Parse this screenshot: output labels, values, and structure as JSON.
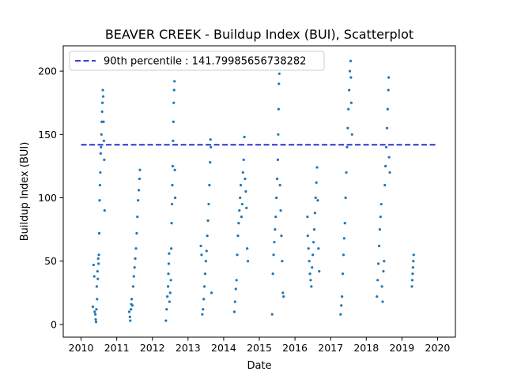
{
  "chart_data": {
    "type": "scatter",
    "title": "BEAVER CREEK - Buildup Index (BUI), Scatterplot",
    "xlabel": "Date",
    "ylabel": "Buildup Index (BUI)",
    "xlim": [
      2009.5,
      2020.5
    ],
    "ylim": [
      -10,
      220
    ],
    "x_ticks": [
      2010,
      2011,
      2012,
      2013,
      2014,
      2015,
      2016,
      2017,
      2018,
      2019,
      2020
    ],
    "y_ticks": [
      0,
      50,
      100,
      150,
      200
    ],
    "point_color": "#1f77b4",
    "reference_line": {
      "label": "90th percentile : 141.79985656738282",
      "value": 141.79985656738282,
      "x_range": [
        2010,
        2020
      ],
      "color": "#0000cc",
      "style": "dashed"
    },
    "legend_position": "top-left",
    "grid": false,
    "seasons": [
      {
        "year": 2010,
        "points": [
          [
            2010.33,
            14
          ],
          [
            2010.35,
            47
          ],
          [
            2010.37,
            38
          ],
          [
            2010.38,
            10
          ],
          [
            2010.4,
            8
          ],
          [
            2010.41,
            4
          ],
          [
            2010.42,
            2
          ],
          [
            2010.43,
            12
          ],
          [
            2010.44,
            30
          ],
          [
            2010.45,
            20
          ],
          [
            2010.46,
            42
          ],
          [
            2010.47,
            36
          ],
          [
            2010.48,
            52
          ],
          [
            2010.49,
            48
          ],
          [
            2010.5,
            55
          ],
          [
            2010.51,
            72
          ],
          [
            2010.52,
            98
          ],
          [
            2010.53,
            110
          ],
          [
            2010.54,
            120
          ],
          [
            2010.55,
            135
          ],
          [
            2010.56,
            140
          ],
          [
            2010.57,
            150
          ],
          [
            2010.58,
            160
          ],
          [
            2010.59,
            168
          ],
          [
            2010.6,
            175
          ],
          [
            2010.61,
            185
          ],
          [
            2010.62,
            180
          ],
          [
            2010.63,
            160
          ],
          [
            2010.64,
            145
          ],
          [
            2010.65,
            130
          ],
          [
            2010.66,
            90
          ]
        ]
      },
      {
        "year": 2011,
        "points": [
          [
            2011.35,
            10
          ],
          [
            2011.37,
            6
          ],
          [
            2011.38,
            3
          ],
          [
            2011.4,
            12
          ],
          [
            2011.41,
            16
          ],
          [
            2011.42,
            20
          ],
          [
            2011.44,
            15
          ],
          [
            2011.46,
            30
          ],
          [
            2011.48,
            38
          ],
          [
            2011.5,
            45
          ],
          [
            2011.52,
            52
          ],
          [
            2011.54,
            60
          ],
          [
            2011.56,
            72
          ],
          [
            2011.58,
            85
          ],
          [
            2011.6,
            98
          ],
          [
            2011.62,
            106
          ],
          [
            2011.64,
            115
          ],
          [
            2011.65,
            122
          ]
        ]
      },
      {
        "year": 2012,
        "points": [
          [
            2012.38,
            3
          ],
          [
            2012.4,
            12
          ],
          [
            2012.42,
            22
          ],
          [
            2012.44,
            30
          ],
          [
            2012.45,
            40
          ],
          [
            2012.46,
            48
          ],
          [
            2012.47,
            56
          ],
          [
            2012.48,
            18
          ],
          [
            2012.5,
            25
          ],
          [
            2012.52,
            35
          ],
          [
            2012.53,
            60
          ],
          [
            2012.54,
            80
          ],
          [
            2012.55,
            95
          ],
          [
            2012.56,
            110
          ],
          [
            2012.57,
            125
          ],
          [
            2012.58,
            145
          ],
          [
            2012.59,
            160
          ],
          [
            2012.6,
            175
          ],
          [
            2012.61,
            185
          ],
          [
            2012.62,
            192
          ],
          [
            2012.63,
            122
          ],
          [
            2012.64,
            100
          ]
        ]
      },
      {
        "year": 2013,
        "points": [
          [
            2013.36,
            62
          ],
          [
            2013.38,
            55
          ],
          [
            2013.4,
            8
          ],
          [
            2013.42,
            12
          ],
          [
            2013.44,
            20
          ],
          [
            2013.46,
            30
          ],
          [
            2013.48,
            40
          ],
          [
            2013.5,
            50
          ],
          [
            2013.52,
            58
          ],
          [
            2013.54,
            70
          ],
          [
            2013.56,
            82
          ],
          [
            2013.58,
            95
          ],
          [
            2013.6,
            110
          ],
          [
            2013.62,
            128
          ],
          [
            2013.63,
            146
          ],
          [
            2013.64,
            140
          ],
          [
            2013.66,
            25
          ]
        ]
      },
      {
        "year": 2014,
        "points": [
          [
            2014.3,
            10
          ],
          [
            2014.32,
            18
          ],
          [
            2014.34,
            28
          ],
          [
            2014.36,
            35
          ],
          [
            2014.38,
            55
          ],
          [
            2014.4,
            70
          ],
          [
            2014.42,
            80
          ],
          [
            2014.44,
            90
          ],
          [
            2014.46,
            100
          ],
          [
            2014.48,
            110
          ],
          [
            2014.5,
            85
          ],
          [
            2014.52,
            95
          ],
          [
            2014.54,
            120
          ],
          [
            2014.56,
            130
          ],
          [
            2014.58,
            148
          ],
          [
            2014.6,
            115
          ],
          [
            2014.62,
            105
          ],
          [
            2014.64,
            92
          ],
          [
            2014.66,
            60
          ],
          [
            2014.68,
            50
          ]
        ]
      },
      {
        "year": 2015,
        "points": [
          [
            2015.36,
            8
          ],
          [
            2015.38,
            40
          ],
          [
            2015.4,
            55
          ],
          [
            2015.42,
            65
          ],
          [
            2015.44,
            75
          ],
          [
            2015.46,
            85
          ],
          [
            2015.48,
            100
          ],
          [
            2015.5,
            115
          ],
          [
            2015.52,
            130
          ],
          [
            2015.53,
            150
          ],
          [
            2015.54,
            170
          ],
          [
            2015.55,
            190
          ],
          [
            2015.56,
            198
          ],
          [
            2015.58,
            110
          ],
          [
            2015.6,
            90
          ],
          [
            2015.62,
            70
          ],
          [
            2015.64,
            50
          ],
          [
            2015.66,
            25
          ],
          [
            2015.68,
            22
          ]
        ]
      },
      {
        "year": 2016,
        "points": [
          [
            2016.35,
            85
          ],
          [
            2016.36,
            70
          ],
          [
            2016.38,
            60
          ],
          [
            2016.4,
            50
          ],
          [
            2016.42,
            40
          ],
          [
            2016.44,
            35
          ],
          [
            2016.46,
            30
          ],
          [
            2016.48,
            45
          ],
          [
            2016.5,
            55
          ],
          [
            2016.52,
            65
          ],
          [
            2016.54,
            75
          ],
          [
            2016.56,
            88
          ],
          [
            2016.58,
            100
          ],
          [
            2016.6,
            112
          ],
          [
            2016.62,
            124
          ],
          [
            2016.64,
            98
          ],
          [
            2016.66,
            60
          ],
          [
            2016.68,
            42
          ]
        ]
      },
      {
        "year": 2017,
        "points": [
          [
            2017.28,
            8
          ],
          [
            2017.3,
            15
          ],
          [
            2017.32,
            22
          ],
          [
            2017.34,
            40
          ],
          [
            2017.36,
            55
          ],
          [
            2017.38,
            68
          ],
          [
            2017.4,
            80
          ],
          [
            2017.42,
            100
          ],
          [
            2017.44,
            120
          ],
          [
            2017.46,
            140
          ],
          [
            2017.48,
            155
          ],
          [
            2017.5,
            170
          ],
          [
            2017.52,
            185
          ],
          [
            2017.54,
            200
          ],
          [
            2017.56,
            208
          ],
          [
            2017.57,
            195
          ],
          [
            2017.58,
            175
          ],
          [
            2017.6,
            150
          ]
        ]
      },
      {
        "year": 2018,
        "points": [
          [
            2018.3,
            22
          ],
          [
            2018.32,
            35
          ],
          [
            2018.34,
            48
          ],
          [
            2018.36,
            62
          ],
          [
            2018.38,
            75
          ],
          [
            2018.4,
            85
          ],
          [
            2018.42,
            95
          ],
          [
            2018.44,
            30
          ],
          [
            2018.46,
            18
          ],
          [
            2018.48,
            42
          ],
          [
            2018.5,
            50
          ],
          [
            2018.52,
            110
          ],
          [
            2018.54,
            125
          ],
          [
            2018.56,
            140
          ],
          [
            2018.58,
            155
          ],
          [
            2018.6,
            170
          ],
          [
            2018.62,
            185
          ],
          [
            2018.63,
            195
          ],
          [
            2018.64,
            132
          ],
          [
            2018.66,
            120
          ]
        ]
      },
      {
        "year": 2019,
        "points": [
          [
            2019.28,
            30
          ],
          [
            2019.29,
            35
          ],
          [
            2019.3,
            40
          ],
          [
            2019.31,
            45
          ],
          [
            2019.32,
            50
          ],
          [
            2019.33,
            55
          ]
        ]
      }
    ]
  }
}
